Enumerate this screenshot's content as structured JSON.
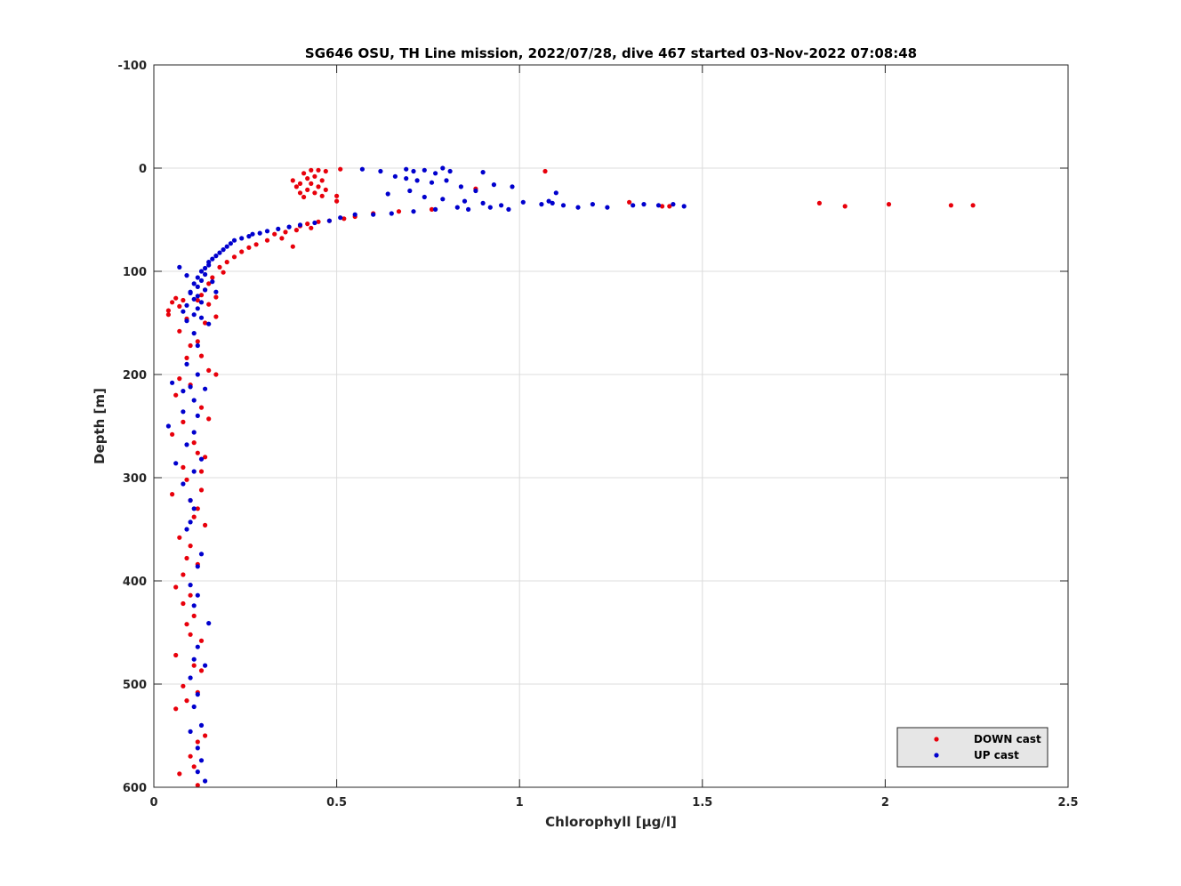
{
  "chart_data": {
    "type": "scatter",
    "title": "SG646 OSU, TH Line mission, 2022/07/28, dive 467 started 03-Nov-2022 07:08:48",
    "xlabel": "Chlorophyll [μg/l]",
    "ylabel": "Depth [m]",
    "xlim": [
      0,
      2.5
    ],
    "ylim": [
      -100,
      600
    ],
    "y_reversed": true,
    "x_ticks": [
      0,
      0.5,
      1,
      1.5,
      2,
      2.5
    ],
    "x_tick_labels": [
      "0",
      "0.5",
      "1",
      "1.5",
      "2",
      "2.5"
    ],
    "y_ticks": [
      -100,
      0,
      100,
      200,
      300,
      400,
      500,
      600
    ],
    "y_tick_labels": [
      "-100",
      "0",
      "100",
      "200",
      "300",
      "400",
      "500",
      "600"
    ],
    "grid": true,
    "legend_position": "bottom-right",
    "series": [
      {
        "name": "DOWN cast",
        "color": "#e8000b",
        "points": [
          [
            0.43,
            2
          ],
          [
            0.45,
            2
          ],
          [
            0.47,
            3
          ],
          [
            0.51,
            1
          ],
          [
            1.07,
            3
          ],
          [
            0.41,
            5
          ],
          [
            0.44,
            8
          ],
          [
            0.42,
            10
          ],
          [
            0.46,
            12
          ],
          [
            0.38,
            12
          ],
          [
            0.4,
            15
          ],
          [
            0.43,
            15
          ],
          [
            0.45,
            18
          ],
          [
            0.39,
            18
          ],
          [
            0.42,
            21
          ],
          [
            0.47,
            21
          ],
          [
            0.4,
            24
          ],
          [
            0.44,
            24
          ],
          [
            0.46,
            27
          ],
          [
            0.5,
            27
          ],
          [
            0.41,
            28
          ],
          [
            0.5,
            32
          ],
          [
            0.88,
            20
          ],
          [
            0.76,
            40
          ],
          [
            0.67,
            42
          ],
          [
            1.3,
            33
          ],
          [
            1.39,
            37
          ],
          [
            1.41,
            37
          ],
          [
            1.82,
            34
          ],
          [
            1.89,
            37
          ],
          [
            2.01,
            35
          ],
          [
            2.18,
            36
          ],
          [
            2.24,
            36
          ],
          [
            0.6,
            44
          ],
          [
            0.55,
            47
          ],
          [
            0.52,
            49
          ],
          [
            0.48,
            51
          ],
          [
            0.45,
            52
          ],
          [
            0.42,
            54
          ],
          [
            0.4,
            56
          ],
          [
            0.43,
            58
          ],
          [
            0.39,
            60
          ],
          [
            0.36,
            62
          ],
          [
            0.33,
            64
          ],
          [
            0.35,
            68
          ],
          [
            0.31,
            70
          ],
          [
            0.38,
            76
          ],
          [
            0.28,
            74
          ],
          [
            0.26,
            77
          ],
          [
            0.24,
            81
          ],
          [
            0.22,
            86
          ],
          [
            0.2,
            91
          ],
          [
            0.18,
            96
          ],
          [
            0.19,
            101
          ],
          [
            0.16,
            106
          ],
          [
            0.15,
            112
          ],
          [
            0.14,
            118
          ],
          [
            0.13,
            123
          ],
          [
            0.17,
            125
          ],
          [
            0.12,
            128
          ],
          [
            0.15,
            132
          ],
          [
            0.08,
            128
          ],
          [
            0.06,
            126
          ],
          [
            0.05,
            130
          ],
          [
            0.07,
            134
          ],
          [
            0.04,
            138
          ],
          [
            0.04,
            142
          ],
          [
            0.09,
            146
          ],
          [
            0.17,
            144
          ],
          [
            0.14,
            150
          ],
          [
            0.07,
            158
          ],
          [
            0.12,
            168
          ],
          [
            0.1,
            172
          ],
          [
            0.09,
            184
          ],
          [
            0.13,
            182
          ],
          [
            0.1,
            210
          ],
          [
            0.15,
            196
          ],
          [
            0.17,
            200
          ],
          [
            0.07,
            204
          ],
          [
            0.06,
            220
          ],
          [
            0.13,
            232
          ],
          [
            0.15,
            243
          ],
          [
            0.08,
            246
          ],
          [
            0.05,
            258
          ],
          [
            0.11,
            266
          ],
          [
            0.12,
            276
          ],
          [
            0.14,
            280
          ],
          [
            0.08,
            290
          ],
          [
            0.13,
            294
          ],
          [
            0.09,
            302
          ],
          [
            0.13,
            312
          ],
          [
            0.05,
            316
          ],
          [
            0.1,
            322
          ],
          [
            0.12,
            330
          ],
          [
            0.11,
            338
          ],
          [
            0.14,
            346
          ],
          [
            0.07,
            358
          ],
          [
            0.1,
            366
          ],
          [
            0.09,
            378
          ],
          [
            0.12,
            384
          ],
          [
            0.08,
            394
          ],
          [
            0.06,
            406
          ],
          [
            0.1,
            414
          ],
          [
            0.08,
            422
          ],
          [
            0.11,
            434
          ],
          [
            0.09,
            442
          ],
          [
            0.1,
            452
          ],
          [
            0.13,
            458
          ],
          [
            0.06,
            472
          ],
          [
            0.11,
            482
          ],
          [
            0.13,
            487
          ],
          [
            0.08,
            502
          ],
          [
            0.12,
            508
          ],
          [
            0.09,
            516
          ],
          [
            0.06,
            524
          ],
          [
            0.14,
            550
          ],
          [
            0.1,
            570
          ],
          [
            0.12,
            556
          ],
          [
            0.11,
            580
          ],
          [
            0.07,
            587
          ],
          [
            0.12,
            598
          ]
        ]
      },
      {
        "name": "UP cast",
        "color": "#0000cd",
        "points": [
          [
            0.57,
            1
          ],
          [
            0.62,
            3
          ],
          [
            0.69,
            1
          ],
          [
            0.71,
            3
          ],
          [
            0.74,
            2
          ],
          [
            0.79,
            0
          ],
          [
            0.81,
            3
          ],
          [
            0.77,
            5
          ],
          [
            0.9,
            4
          ],
          [
            0.66,
            8
          ],
          [
            0.69,
            10
          ],
          [
            0.72,
            12
          ],
          [
            0.76,
            14
          ],
          [
            0.8,
            12
          ],
          [
            0.84,
            18
          ],
          [
            0.88,
            22
          ],
          [
            0.93,
            16
          ],
          [
            0.98,
            18
          ],
          [
            0.64,
            25
          ],
          [
            0.7,
            22
          ],
          [
            0.74,
            28
          ],
          [
            0.79,
            30
          ],
          [
            0.85,
            32
          ],
          [
            0.9,
            34
          ],
          [
            0.95,
            36
          ],
          [
            1.01,
            33
          ],
          [
            1.06,
            35
          ],
          [
            1.09,
            34
          ],
          [
            1.12,
            36
          ],
          [
            1.16,
            38
          ],
          [
            1.2,
            35
          ],
          [
            1.24,
            38
          ],
          [
            1.31,
            36
          ],
          [
            1.34,
            35
          ],
          [
            1.38,
            36
          ],
          [
            1.42,
            35
          ],
          [
            1.45,
            37
          ],
          [
            1.1,
            24
          ],
          [
            1.08,
            32
          ],
          [
            0.97,
            40
          ],
          [
            0.92,
            38
          ],
          [
            0.86,
            40
          ],
          [
            0.83,
            38
          ],
          [
            0.77,
            40
          ],
          [
            0.71,
            42
          ],
          [
            0.65,
            44
          ],
          [
            0.6,
            45
          ],
          [
            0.55,
            45
          ],
          [
            0.51,
            48
          ],
          [
            0.48,
            51
          ],
          [
            0.44,
            53
          ],
          [
            0.4,
            55
          ],
          [
            0.37,
            57
          ],
          [
            0.34,
            59
          ],
          [
            0.31,
            61
          ],
          [
            0.29,
            63
          ],
          [
            0.27,
            64
          ],
          [
            0.26,
            66
          ],
          [
            0.24,
            68
          ],
          [
            0.22,
            70
          ],
          [
            0.21,
            73
          ],
          [
            0.2,
            76
          ],
          [
            0.19,
            79
          ],
          [
            0.18,
            82
          ],
          [
            0.17,
            85
          ],
          [
            0.16,
            88
          ],
          [
            0.15,
            91
          ],
          [
            0.15,
            94
          ],
          [
            0.14,
            97
          ],
          [
            0.13,
            100
          ],
          [
            0.14,
            103
          ],
          [
            0.12,
            106
          ],
          [
            0.13,
            109
          ],
          [
            0.11,
            112
          ],
          [
            0.12,
            115
          ],
          [
            0.14,
            118
          ],
          [
            0.1,
            121
          ],
          [
            0.12,
            124
          ],
          [
            0.11,
            127
          ],
          [
            0.13,
            130
          ],
          [
            0.09,
            133
          ],
          [
            0.12,
            136
          ],
          [
            0.08,
            139
          ],
          [
            0.11,
            142
          ],
          [
            0.13,
            145
          ],
          [
            0.09,
            148
          ],
          [
            0.15,
            151
          ],
          [
            0.07,
            96
          ],
          [
            0.09,
            104
          ],
          [
            0.1,
            120
          ],
          [
            0.16,
            110
          ],
          [
            0.17,
            120
          ],
          [
            0.11,
            160
          ],
          [
            0.12,
            172
          ],
          [
            0.09,
            190
          ],
          [
            0.12,
            200
          ],
          [
            0.1,
            212
          ],
          [
            0.05,
            208
          ],
          [
            0.08,
            216
          ],
          [
            0.14,
            214
          ],
          [
            0.11,
            225
          ],
          [
            0.08,
            236
          ],
          [
            0.12,
            240
          ],
          [
            0.04,
            250
          ],
          [
            0.11,
            256
          ],
          [
            0.09,
            268
          ],
          [
            0.13,
            282
          ],
          [
            0.06,
            286
          ],
          [
            0.11,
            294
          ],
          [
            0.08,
            306
          ],
          [
            0.1,
            322
          ],
          [
            0.11,
            330
          ],
          [
            0.1,
            343
          ],
          [
            0.09,
            350
          ],
          [
            0.13,
            374
          ],
          [
            0.12,
            386
          ],
          [
            0.1,
            404
          ],
          [
            0.12,
            414
          ],
          [
            0.11,
            424
          ],
          [
            0.15,
            441
          ],
          [
            0.12,
            464
          ],
          [
            0.11,
            476
          ],
          [
            0.14,
            482
          ],
          [
            0.1,
            494
          ],
          [
            0.12,
            510
          ],
          [
            0.11,
            522
          ],
          [
            0.13,
            540
          ],
          [
            0.1,
            546
          ],
          [
            0.12,
            562
          ],
          [
            0.13,
            574
          ],
          [
            0.12,
            585
          ],
          [
            0.14,
            594
          ]
        ]
      }
    ]
  }
}
